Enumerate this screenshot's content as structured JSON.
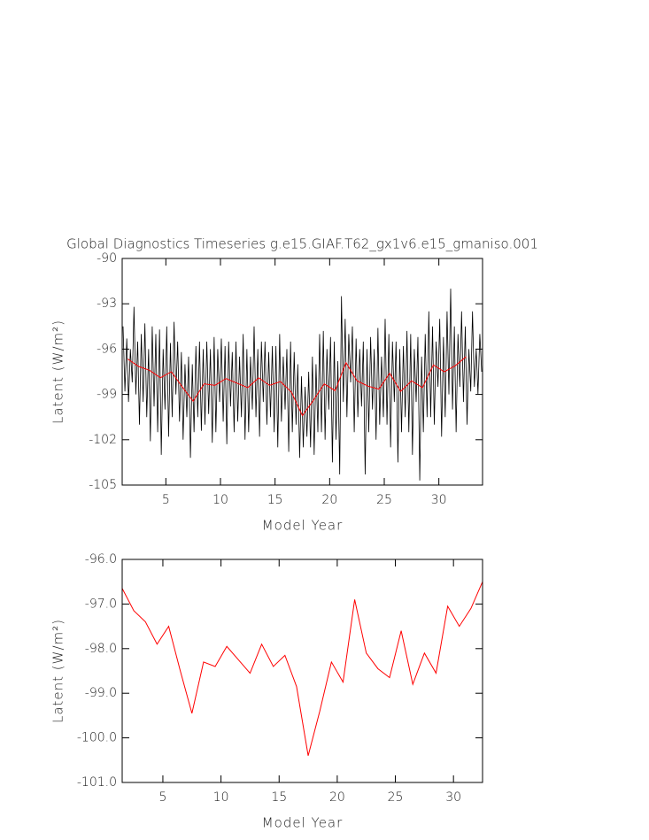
{
  "chart_data": [
    {
      "type": "line",
      "title": "Global Diagnostics Timeseries g.e15.GIAF.T62_gx1v6.e15_gmaniso.001",
      "x_label": "Model Year",
      "y_label": "Latent (W/m²)",
      "xlim": [
        1,
        34
      ],
      "xticks": [
        5,
        10,
        15,
        20,
        25,
        30
      ],
      "ylim": [
        -105,
        -90
      ],
      "yticks": [
        -105,
        -102,
        -99,
        -96,
        -93,
        -90
      ],
      "series": [
        {
          "color": "#000000",
          "x": [
            1.08,
            1.25,
            1.42,
            1.58,
            1.75,
            1.92,
            2.08,
            2.25,
            2.42,
            2.58,
            2.75,
            2.92,
            3.08,
            3.25,
            3.42,
            3.58,
            3.75,
            3.92,
            4.08,
            4.25,
            4.42,
            4.58,
            4.75,
            4.92,
            5.08,
            5.25,
            5.42,
            5.58,
            5.75,
            5.92,
            6.08,
            6.25,
            6.42,
            6.58,
            6.75,
            6.92,
            7.08,
            7.25,
            7.42,
            7.58,
            7.75,
            7.92,
            8.08,
            8.25,
            8.42,
            8.58,
            8.75,
            8.92,
            9.08,
            9.25,
            9.42,
            9.58,
            9.75,
            9.92,
            10.08,
            10.25,
            10.42,
            10.58,
            10.75,
            10.92,
            11.08,
            11.25,
            11.42,
            11.58,
            11.75,
            11.92,
            12.08,
            12.25,
            12.42,
            12.58,
            12.75,
            12.92,
            13.08,
            13.25,
            13.42,
            13.58,
            13.75,
            13.92,
            14.08,
            14.25,
            14.42,
            14.58,
            14.75,
            14.92,
            15.08,
            15.25,
            15.42,
            15.58,
            15.75,
            15.92,
            16.08,
            16.25,
            16.42,
            16.58,
            16.75,
            16.92,
            17.08,
            17.25,
            17.42,
            17.58,
            17.75,
            17.92,
            18.08,
            18.25,
            18.42,
            18.58,
            18.75,
            18.92,
            19.08,
            19.25,
            19.42,
            19.58,
            19.75,
            19.92,
            20.08,
            20.25,
            20.42,
            20.58,
            20.75,
            20.92,
            21.08,
            21.25,
            21.42,
            21.58,
            21.75,
            21.92,
            22.08,
            22.25,
            22.42,
            22.58,
            22.75,
            22.92,
            23.08,
            23.25,
            23.42,
            23.58,
            23.75,
            23.92,
            24.08,
            24.25,
            24.42,
            24.58,
            24.75,
            24.92,
            25.08,
            25.25,
            25.42,
            25.58,
            25.75,
            25.92,
            26.08,
            26.25,
            26.42,
            26.58,
            26.75,
            26.92,
            27.08,
            27.25,
            27.42,
            27.58,
            27.75,
            27.92,
            28.08,
            28.25,
            28.42,
            28.58,
            28.75,
            28.92,
            29.08,
            29.25,
            29.42,
            29.58,
            29.75,
            29.92,
            30.08,
            30.25,
            30.42,
            30.58,
            30.75,
            30.92,
            31.08,
            31.25,
            31.42,
            31.58,
            31.75,
            31.92,
            32.08,
            32.25,
            32.42,
            32.58,
            32.75,
            32.92,
            33.08,
            33.25,
            33.42,
            33.58,
            33.75,
            33.92
          ],
          "values": [
            -94.5,
            -98.8,
            -95.3,
            -99.5,
            -96.0,
            -98.2,
            -93.2,
            -99.0,
            -95.5,
            -101.0,
            -95.0,
            -99.5,
            -94.3,
            -100.5,
            -96.0,
            -102.1,
            -94.5,
            -99.8,
            -95.0,
            -101.5,
            -94.7,
            -103.0,
            -96.0,
            -100.0,
            -94.5,
            -101.8,
            -95.6,
            -100.5,
            -94.2,
            -99.0,
            -95.5,
            -100.8,
            -96.2,
            -102.0,
            -97.0,
            -100.5,
            -96.5,
            -103.2,
            -97.0,
            -101.5,
            -95.8,
            -100.5,
            -95.5,
            -101.4,
            -96.0,
            -101.0,
            -95.5,
            -100.3,
            -96.0,
            -102.2,
            -95.2,
            -101.5,
            -96.0,
            -99.5,
            -95.3,
            -100.8,
            -95.8,
            -102.3,
            -95.5,
            -99.8,
            -96.2,
            -101.5,
            -95.5,
            -100.8,
            -96.5,
            -100.5,
            -95.0,
            -102.0,
            -96.0,
            -101.5,
            -96.5,
            -100.0,
            -94.5,
            -100.5,
            -96.0,
            -101.8,
            -95.5,
            -99.5,
            -95.5,
            -101.0,
            -96.2,
            -100.5,
            -95.8,
            -101.5,
            -95.8,
            -102.5,
            -95.0,
            -100.8,
            -96.5,
            -100.0,
            -96.0,
            -102.8,
            -95.5,
            -101.5,
            -96.2,
            -101.0,
            -97.0,
            -103.2,
            -97.8,
            -102.5,
            -98.5,
            -101.8,
            -97.5,
            -102.5,
            -96.5,
            -103.0,
            -97.0,
            -101.5,
            -95.0,
            -101.5,
            -94.8,
            -102.0,
            -96.0,
            -100.0,
            -95.2,
            -103.5,
            -95.5,
            -102.0,
            -96.8,
            -104.3,
            -92.5,
            -99.5,
            -94.0,
            -100.5,
            -95.0,
            -98.2,
            -94.5,
            -101.5,
            -95.3,
            -100.5,
            -96.0,
            -99.8,
            -95.5,
            -104.3,
            -96.0,
            -101.5,
            -95.2,
            -100.0,
            -96.0,
            -102.0,
            -94.6,
            -101.0,
            -96.5,
            -100.5,
            -94.0,
            -101.0,
            -95.0,
            -102.5,
            -95.5,
            -99.5,
            -95.5,
            -103.5,
            -96.0,
            -101.5,
            -95.8,
            -100.5,
            -94.8,
            -101.5,
            -95.0,
            -103.0,
            -96.0,
            -99.5,
            -95.2,
            -104.7,
            -96.5,
            -101.5,
            -95.0,
            -100.5,
            -93.5,
            -100.5,
            -94.5,
            -101.0,
            -95.5,
            -98.5,
            -94.0,
            -101.8,
            -95.2,
            -100.5,
            -93.5,
            -99.0,
            -92.0,
            -100.0,
            -94.5,
            -101.5,
            -95.0,
            -98.5,
            -93.5,
            -99.5,
            -94.5,
            -101.0,
            -96.0,
            -98.8,
            -93.5,
            -98.5,
            -96.0,
            -99.0,
            -95.0,
            -97.5
          ]
        },
        {
          "color": "#ff0000",
          "x": [
            1.5,
            2.5,
            3.5,
            4.5,
            5.5,
            6.5,
            7.5,
            8.5,
            9.5,
            10.5,
            11.5,
            12.5,
            13.5,
            14.5,
            15.5,
            16.5,
            17.5,
            18.5,
            19.5,
            20.5,
            21.5,
            22.5,
            23.5,
            24.5,
            25.5,
            26.5,
            27.5,
            28.5,
            29.5,
            30.5,
            31.5,
            32.5
          ],
          "values": [
            -96.65,
            -97.15,
            -97.4,
            -97.9,
            -97.5,
            -98.5,
            -99.45,
            -98.3,
            -98.4,
            -97.95,
            -98.25,
            -98.55,
            -97.9,
            -98.4,
            -98.15,
            -98.85,
            -100.4,
            -99.4,
            -98.3,
            -98.75,
            -96.9,
            -98.1,
            -98.45,
            -98.65,
            -97.6,
            -98.8,
            -98.1,
            -98.55,
            -97.05,
            -97.5,
            -97.1,
            -96.5
          ]
        }
      ]
    },
    {
      "type": "line",
      "x_label": "Model Year",
      "y_label": "Latent (W/m²)",
      "xlim": [
        1.5,
        32.5
      ],
      "xticks": [
        5,
        10,
        15,
        20,
        25,
        30
      ],
      "ylim": [
        -101,
        -96
      ],
      "yticks": [
        {
          "value": -101,
          "label": "-101.0"
        },
        {
          "value": -100,
          "label": "-100.0"
        },
        {
          "value": -99,
          "label": "-99.0"
        },
        {
          "value": -98,
          "label": "-98.0"
        },
        {
          "value": -97,
          "label": "-97.0"
        },
        {
          "value": -96,
          "label": "-96.0"
        }
      ],
      "series": [
        {
          "color": "#ff0000",
          "x": [
            1.5,
            2.5,
            3.5,
            4.5,
            5.5,
            6.5,
            7.5,
            8.5,
            9.5,
            10.5,
            11.5,
            12.5,
            13.5,
            14.5,
            15.5,
            16.5,
            17.5,
            18.5,
            19.5,
            20.5,
            21.5,
            22.5,
            23.5,
            24.5,
            25.5,
            26.5,
            27.5,
            28.5,
            29.5,
            30.5,
            31.5,
            32.5
          ],
          "values": [
            -96.65,
            -97.15,
            -97.4,
            -97.9,
            -97.5,
            -98.5,
            -99.45,
            -98.3,
            -98.4,
            -97.95,
            -98.25,
            -98.55,
            -97.9,
            -98.4,
            -98.15,
            -98.85,
            -100.4,
            -99.4,
            -98.3,
            -98.75,
            -96.9,
            -98.1,
            -98.45,
            -98.65,
            -97.6,
            -98.8,
            -98.1,
            -98.55,
            -97.05,
            -97.5,
            -97.1,
            -96.5
          ]
        }
      ]
    }
  ]
}
